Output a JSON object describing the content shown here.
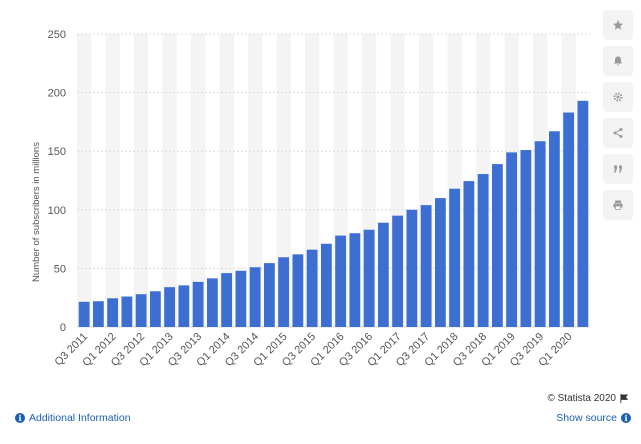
{
  "chart_data": {
    "type": "bar",
    "categories": [
      "Q3 2011",
      "Q4 2011",
      "Q1 2012",
      "Q2 2012",
      "Q3 2012",
      "Q4 2012",
      "Q1 2013",
      "Q2 2013",
      "Q3 2013",
      "Q4 2013",
      "Q1 2014",
      "Q2 2014",
      "Q3 2014",
      "Q4 2014",
      "Q1 2015",
      "Q2 2015",
      "Q3 2015",
      "Q4 2015",
      "Q1 2016",
      "Q2 2016",
      "Q3 2016",
      "Q4 2016",
      "Q1 2017",
      "Q2 2017",
      "Q3 2017",
      "Q4 2017",
      "Q1 2018",
      "Q2 2018",
      "Q3 2018",
      "Q4 2018",
      "Q1 2019",
      "Q2 2019",
      "Q3 2019",
      "Q4 2019",
      "Q1 2020",
      "Q2 2020"
    ],
    "shown_tick_labels": [
      "Q3 2011",
      "Q1 2012",
      "Q3 2012",
      "Q1 2013",
      "Q3 2013",
      "Q1 2014",
      "Q3 2014",
      "Q1 2015",
      "Q3 2015",
      "Q1 2016",
      "Q3 2016",
      "Q1 2017",
      "Q3 2017",
      "Q1 2018",
      "Q3 2018",
      "Q1 2019",
      "Q3 2019",
      "Q1 2020"
    ],
    "values": [
      21.5,
      22.0,
      24.5,
      26.0,
      28.0,
      30.5,
      34.0,
      35.5,
      38.5,
      41.5,
      46.0,
      48.0,
      51.0,
      54.5,
      59.5,
      62.0,
      66.0,
      71.0,
      78.0,
      80.0,
      83.0,
      89.0,
      95.0,
      100.0,
      104.0,
      110.0,
      118.0,
      124.5,
      130.5,
      139.0,
      149.0,
      151.0,
      158.5,
      167.0,
      183.0,
      193.0
    ],
    "ylabel": "Number of subscribers in millions",
    "xlabel": "",
    "ylim": [
      0,
      250
    ],
    "yticks": [
      0,
      50,
      100,
      150,
      200,
      250
    ],
    "grid": true,
    "bar_color": "#3c6fd1",
    "grid_color": "#dcdcdc",
    "band_color": "#f4f4f4"
  },
  "credit": "© Statista 2020",
  "footer": {
    "additional_info": "Additional Information",
    "show_source": "Show source"
  },
  "toolbar": [
    "star-icon",
    "bell-icon",
    "gear-icon",
    "share-icon",
    "quote-icon",
    "print-icon"
  ]
}
